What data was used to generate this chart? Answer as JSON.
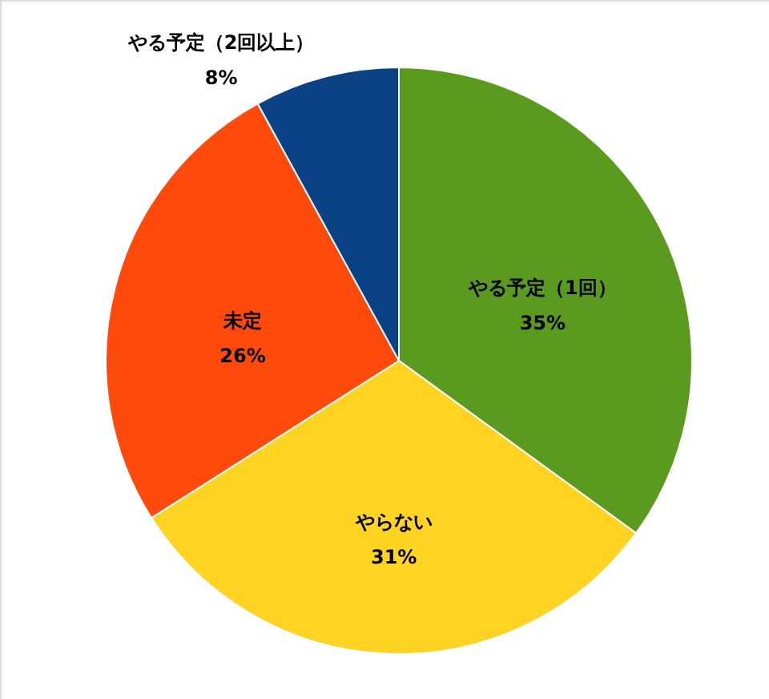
{
  "chart_data": {
    "type": "pie",
    "categories": [
      "やる予定（1回）",
      "やらない",
      "未定",
      "やる予定（2回以上）"
    ],
    "values": [
      35,
      31,
      26,
      8
    ],
    "colors": [
      "#5a9a1e",
      "#ffd322",
      "#ff4a0c",
      "#0b4285"
    ],
    "value_labels": [
      "35%",
      "31%",
      "26%",
      "8%"
    ]
  }
}
